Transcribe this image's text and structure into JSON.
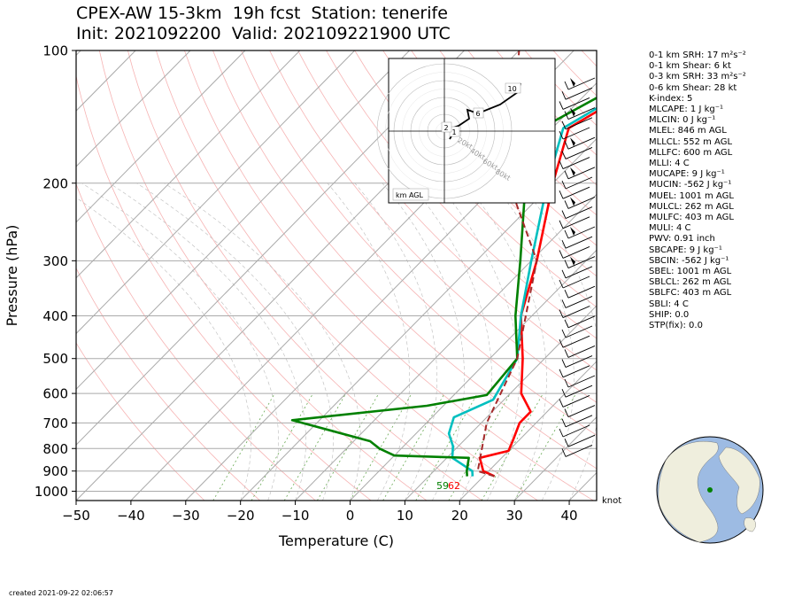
{
  "title_line1": "CPEX-AW 15-3km  19h fcst  Station: tenerife",
  "title_line2": "Init: 2021092200  Valid: 202109221900 UTC",
  "chart_data": {
    "type": "line",
    "title": "CPEX-AW 15-3km  19h fcst  Station: tenerife",
    "xlabel": "Temperature (C)",
    "ylabel": "Pressure (hPa)",
    "xlim": [
      -50,
      45
    ],
    "ylim": [
      1050,
      100
    ],
    "y_scale": "log",
    "x_ticks": [
      -50,
      -40,
      -30,
      -20,
      -10,
      0,
      10,
      20,
      30,
      40
    ],
    "y_ticks": [
      100,
      200,
      300,
      400,
      500,
      600,
      700,
      800,
      900,
      1000
    ],
    "series": [
      {
        "color": "#ff0000",
        "points": [
          [
            22,
            925
          ],
          [
            19,
            900
          ],
          [
            16,
            840
          ],
          [
            20,
            810
          ],
          [
            19,
            770
          ],
          [
            17,
            700
          ],
          [
            17,
            660
          ],
          [
            12,
            600
          ],
          [
            6,
            500
          ],
          [
            -2,
            400
          ],
          [
            -9,
            300
          ],
          [
            -20,
            200
          ],
          [
            -27,
            150
          ],
          [
            -17,
            100
          ]
        ]
      },
      {
        "color": "#00bfbf",
        "points": [
          [
            18,
            925
          ],
          [
            17,
            900
          ],
          [
            11,
            840
          ],
          [
            9,
            790
          ],
          [
            6,
            740
          ],
          [
            4,
            680
          ],
          [
            8,
            620
          ],
          [
            5,
            500
          ],
          [
            -2,
            400
          ],
          [
            -10,
            300
          ],
          [
            -21,
            200
          ],
          [
            -28,
            150
          ],
          [
            -18,
            100
          ]
        ]
      },
      {
        "color": "#008000",
        "points": [
          [
            17,
            925
          ],
          [
            16,
            900
          ],
          [
            14,
            840
          ],
          [
            0,
            830
          ],
          [
            -4,
            800
          ],
          [
            -7,
            770
          ],
          [
            -25,
            690
          ],
          [
            -3,
            640
          ],
          [
            6,
            605
          ],
          [
            5,
            500
          ],
          [
            -3,
            400
          ],
          [
            -12,
            300
          ],
          [
            -25,
            200
          ],
          [
            -32,
            150
          ],
          [
            -20,
            100
          ]
        ]
      },
      {
        "color": "#a52a2a",
        "dashed": true,
        "points": [
          [
            22,
            925
          ],
          [
            18,
            900
          ],
          [
            11,
            700
          ],
          [
            5,
            500
          ],
          [
            -9,
            300
          ],
          [
            -28,
            200
          ],
          [
            -50,
            100
          ]
        ]
      }
    ],
    "surface_labels": [
      {
        "text": "59",
        "color": "#008000"
      },
      {
        "text": "62",
        "color": "#ff0000"
      }
    ],
    "wind_units": "knot",
    "hodograph": {
      "rings": [
        "20kt",
        "40kt",
        "60kt",
        "80kt"
      ],
      "labels": [
        "1",
        "2",
        "6",
        "10"
      ],
      "legend": "km AGL"
    }
  },
  "indices": [
    "0-1 km SRH: 17 m²s⁻²",
    "0-1 km Shear: 6 kt",
    "0-3 km SRH: 33 m²s⁻²",
    "0-6 km Shear: 28 kt",
    "K-index: 5",
    "MLCAPE: 1 J kg⁻¹",
    "MLCIN: 0 J kg⁻¹",
    "MLEL: 846 m AGL",
    "MLLCL: 552 m AGL",
    "MLLFC: 600 m AGL",
    "MLLI: 4 C",
    "MUCAPE: 9 J kg⁻¹",
    "MUCIN: -562 J kg⁻¹",
    "MUEL: 1001 m AGL",
    "MULCL: 262 m AGL",
    "MULFC: 403 m AGL",
    "MULI: 4 C",
    "PWV: 0.91 inch",
    "SBCAPE: 9 J kg⁻¹",
    "SBCIN: -562 J kg⁻¹",
    "SBEL: 1001 m AGL",
    "SBLCL: 262 m AGL",
    "SBLFC: 403 m AGL",
    "SBLI: 4 C",
    "SHIP: 0.0",
    "STP(fix): 0.0"
  ],
  "created": "created 2021-09-22 02:06:57",
  "colors": {
    "temperature": "#ff0000",
    "dewpoint": "#008000",
    "virtual": "#00bfbf",
    "parcel": "#a52a2a"
  }
}
